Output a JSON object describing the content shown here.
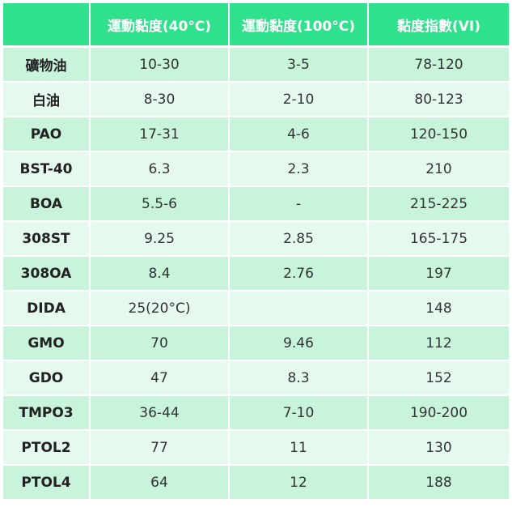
{
  "table": {
    "headers": [
      "",
      "運動黏度(40°C)",
      "運動黏度(100°C)",
      "黏度指數(VI)"
    ],
    "rows": [
      [
        "礦物油",
        "10-30",
        "3-5",
        "78-120"
      ],
      [
        "白油",
        "8-30",
        "2-10",
        "80-123"
      ],
      [
        "PAO",
        "17-31",
        "4-6",
        "120-150"
      ],
      [
        "BST-40",
        "6.3",
        "2.3",
        "210"
      ],
      [
        "BOA",
        "5.5-6",
        "-",
        "215-225"
      ],
      [
        "308ST",
        "9.25",
        "2.85",
        "165-175"
      ],
      [
        "308OA",
        "8.4",
        "2.76",
        "197"
      ],
      [
        "DIDA",
        "25(20°C)",
        "",
        "148"
      ],
      [
        "GMO",
        "70",
        "9.46",
        "112"
      ],
      [
        "GDO",
        "47",
        "8.3",
        "152"
      ],
      [
        "TMPO3",
        "36-44",
        "7-10",
        "190-200"
      ],
      [
        "PTOL2",
        "77",
        "11",
        "130"
      ],
      [
        "PTOL4",
        "64",
        "12",
        "188"
      ]
    ]
  },
  "colors": {
    "header_bg": "#2fe08c",
    "header_text": "#ffffff",
    "row_odd_bg": "#c8f4dc",
    "row_even_bg": "#e6f9ee"
  }
}
